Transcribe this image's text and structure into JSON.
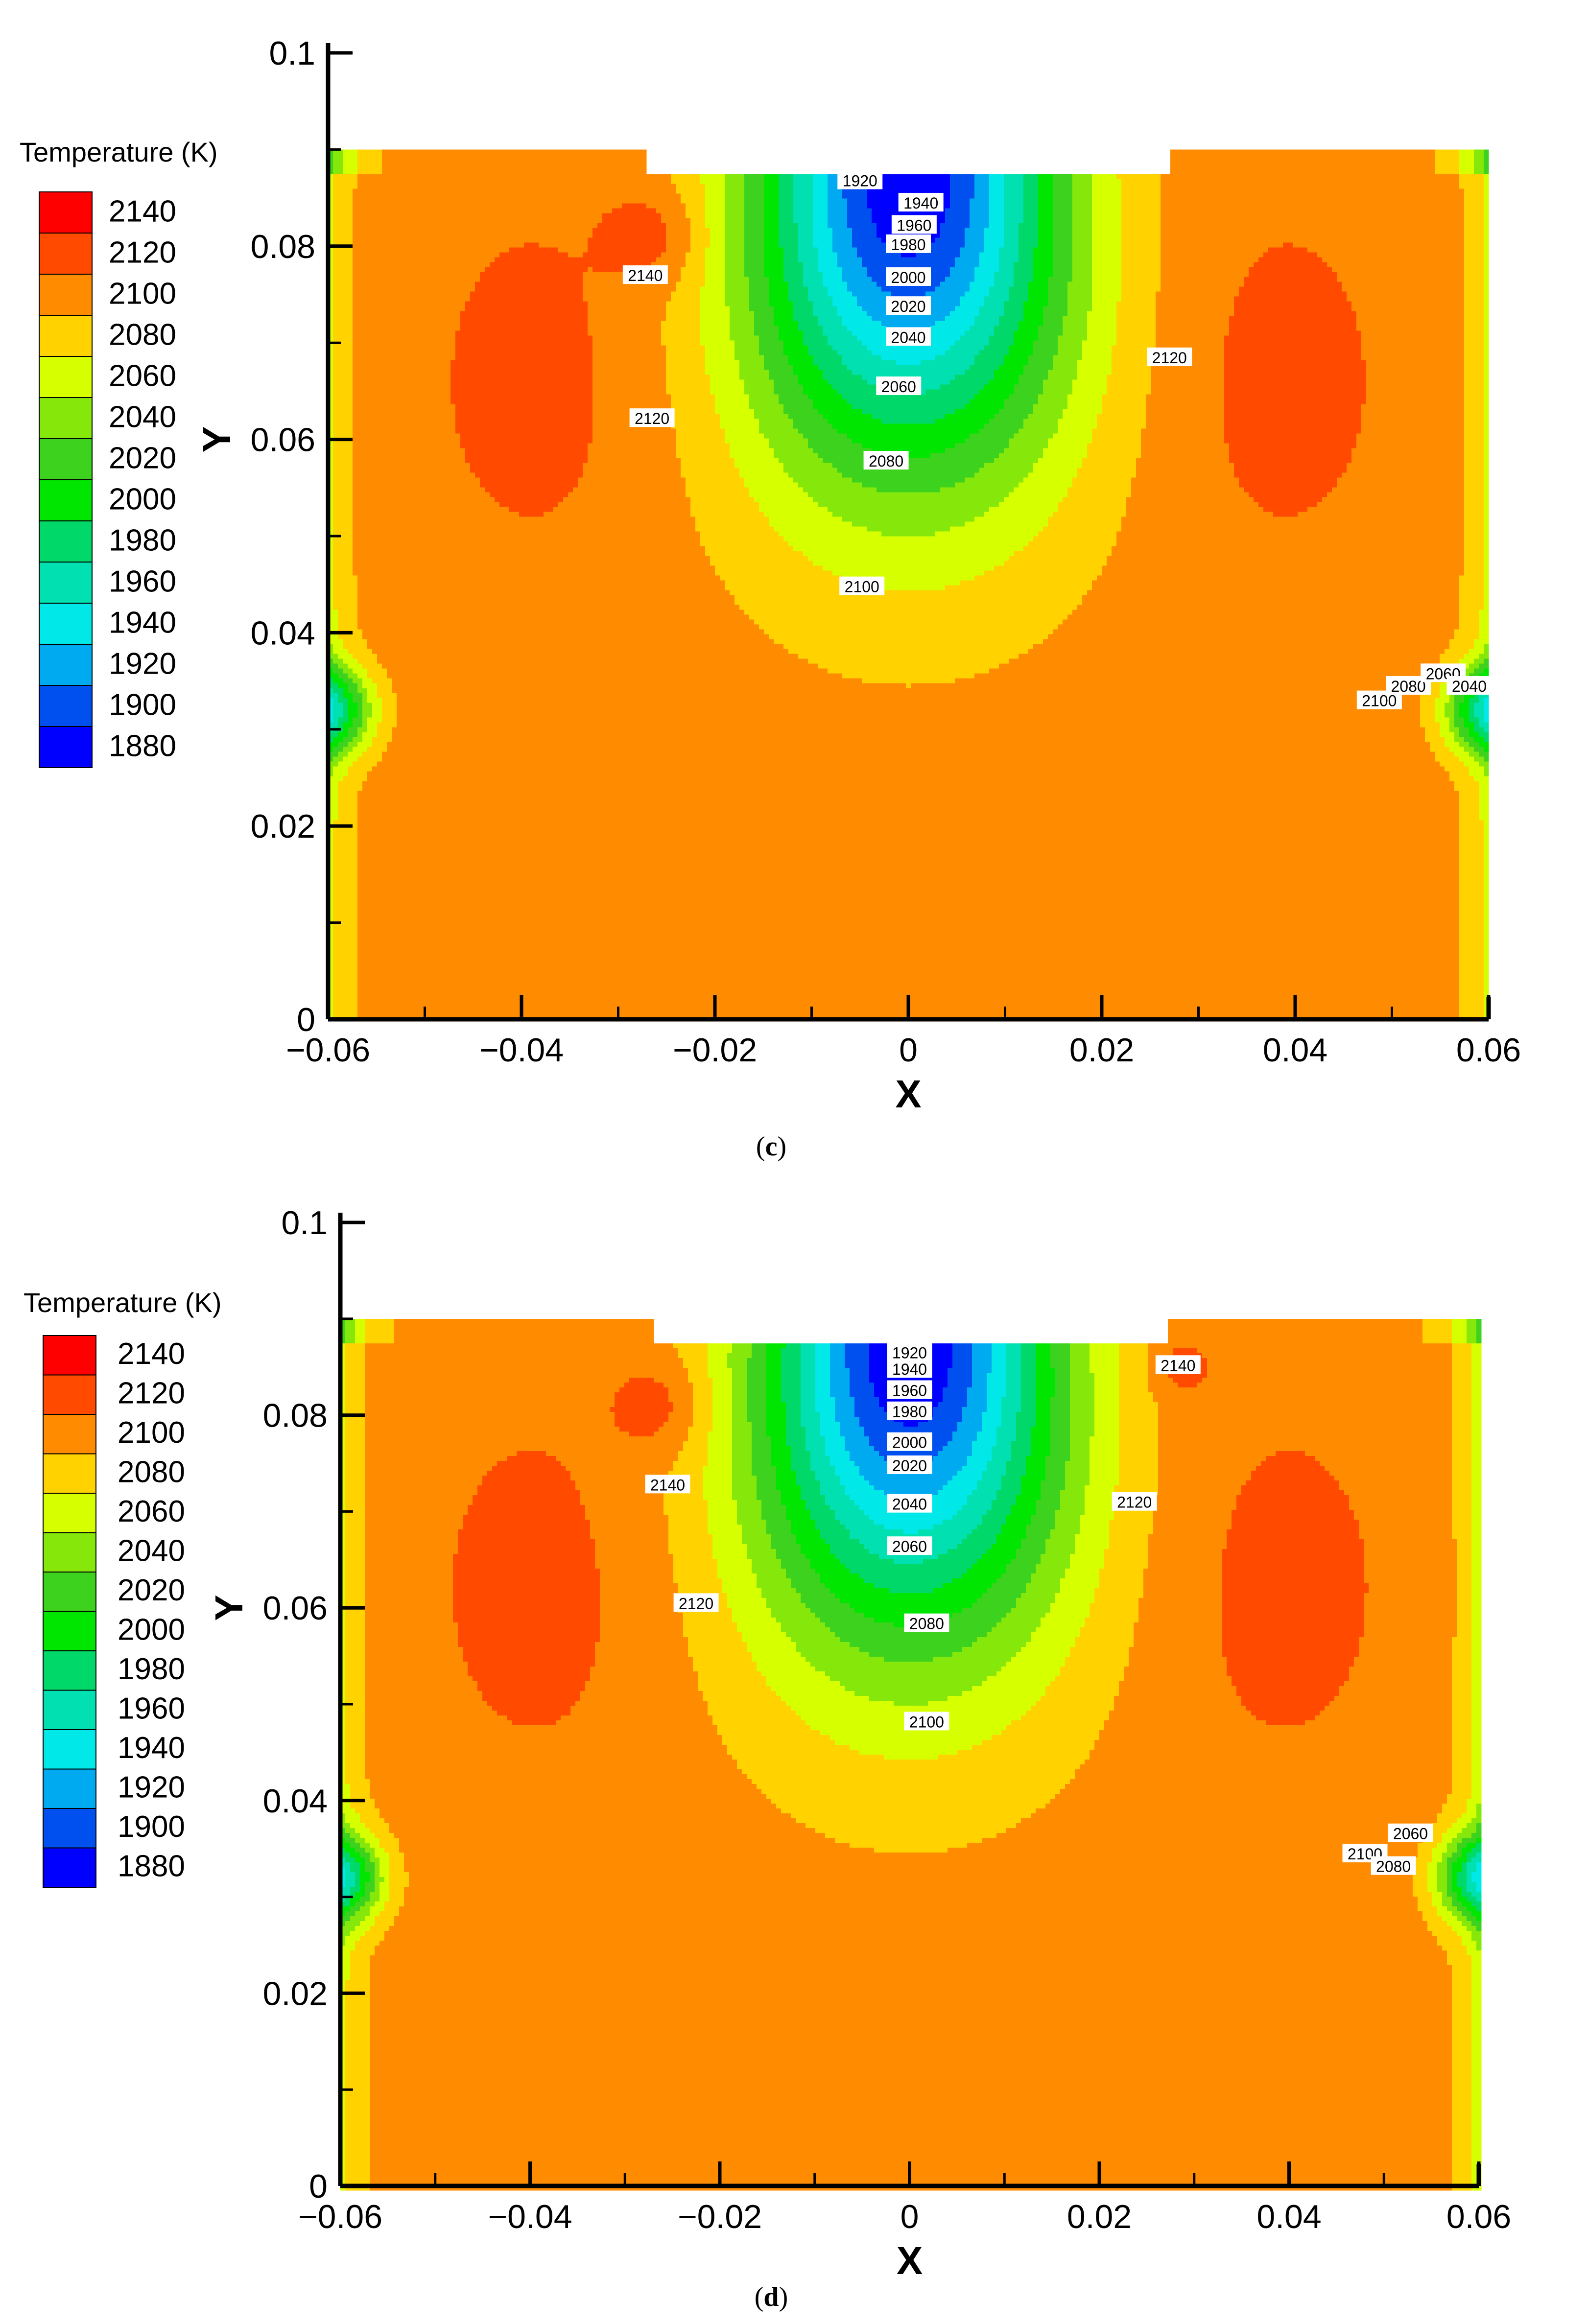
{
  "chart_data": [
    {
      "panel": "c",
      "type": "contour",
      "xlabel": "X",
      "ylabel": "Y",
      "xlim": [
        -0.06,
        0.06
      ],
      "ylim": [
        0,
        0.1
      ],
      "x_ticks": [
        "-0.06",
        "-0.04",
        "-0.02",
        "0",
        "0.02",
        "0.04",
        "0.06"
      ],
      "y_ticks": [
        "0",
        "0.02",
        "0.04",
        "0.06",
        "0.08",
        "0.1"
      ],
      "domain_top": 0.09,
      "inlet_x": [
        -0.027,
        0.027
      ],
      "inlet_y": 0.0875,
      "legend": {
        "title": "Temperature (K)",
        "placement": "left",
        "levels": [
          2140,
          2120,
          2100,
          2080,
          2060,
          2040,
          2020,
          2000,
          1980,
          1960,
          1940,
          1920,
          1900,
          1880
        ],
        "colors": [
          "#ff0000",
          "#ff4a00",
          "#ff8c00",
          "#ffd200",
          "#d6ff00",
          "#86e80a",
          "#3cd21e",
          "#00e600",
          "#00d86a",
          "#00e0b0",
          "#00e8e8",
          "#00aaf0",
          "#0050f0",
          "#0000ff"
        ]
      },
      "annotations": [
        {
          "text": "1920",
          "x": -0.005,
          "y": 0.0868
        },
        {
          "text": "1940",
          "x": 0.0013,
          "y": 0.0845
        },
        {
          "text": "1960",
          "x": 0.0006,
          "y": 0.0822
        },
        {
          "text": "1980",
          "x": 0.0,
          "y": 0.0802
        },
        {
          "text": "2000",
          "x": 0.0,
          "y": 0.0768
        },
        {
          "text": "2020",
          "x": 0.0,
          "y": 0.0738
        },
        {
          "text": "2040",
          "x": 0.0,
          "y": 0.0706
        },
        {
          "text": "2060",
          "x": -0.001,
          "y": 0.0655
        },
        {
          "text": "2080",
          "x": -0.0023,
          "y": 0.0578
        },
        {
          "text": "2100",
          "x": -0.0048,
          "y": 0.0448
        },
        {
          "text": "2140",
          "x": -0.0272,
          "y": 0.077
        },
        {
          "text": "2120",
          "x": -0.0265,
          "y": 0.0622
        },
        {
          "text": "2120",
          "x": 0.027,
          "y": 0.0685
        },
        {
          "text": "2100",
          "x": 0.0487,
          "y": 0.033
        },
        {
          "text": "2080",
          "x": 0.0517,
          "y": 0.0345
        },
        {
          "text": "2060",
          "x": 0.0553,
          "y": 0.0358
        },
        {
          "text": "2040",
          "x": 0.058,
          "y": 0.0345
        }
      ]
    },
    {
      "panel": "d",
      "type": "contour",
      "xlabel": "X",
      "ylabel": "Y",
      "xlim": [
        -0.06,
        0.06
      ],
      "ylim": [
        0,
        0.1
      ],
      "x_ticks": [
        "-0.06",
        "-0.04",
        "-0.02",
        "0",
        "0.02",
        "0.04",
        "0.06"
      ],
      "y_ticks": [
        "0",
        "0.02",
        "0.04",
        "0.06",
        "0.08",
        "0.1"
      ],
      "domain_top": 0.09,
      "inlet_x": [
        -0.027,
        0.027
      ],
      "inlet_y": 0.0875,
      "legend": {
        "title": "Temperature (K)",
        "placement": "left",
        "levels": [
          2140,
          2120,
          2100,
          2080,
          2060,
          2040,
          2020,
          2000,
          1980,
          1960,
          1940,
          1920,
          1900,
          1880
        ],
        "colors": [
          "#ff0000",
          "#ff4a00",
          "#ff8c00",
          "#ffd200",
          "#d6ff00",
          "#86e80a",
          "#3cd21e",
          "#00e600",
          "#00d86a",
          "#00e0b0",
          "#00e8e8",
          "#00aaf0",
          "#0050f0",
          "#0000ff"
        ]
      },
      "annotations": [
        {
          "text": "1920",
          "x": 0.0,
          "y": 0.0865
        },
        {
          "text": "1940",
          "x": 0.0,
          "y": 0.0848
        },
        {
          "text": "1960",
          "x": 0.0,
          "y": 0.0826
        },
        {
          "text": "1980",
          "x": 0.0,
          "y": 0.0804
        },
        {
          "text": "2000",
          "x": 0.0,
          "y": 0.0772
        },
        {
          "text": "2020",
          "x": 0.0,
          "y": 0.0748
        },
        {
          "text": "2040",
          "x": 0.0,
          "y": 0.0708
        },
        {
          "text": "2060",
          "x": 0.0,
          "y": 0.0664
        },
        {
          "text": "2080",
          "x": 0.0018,
          "y": 0.0584
        },
        {
          "text": "2100",
          "x": 0.0018,
          "y": 0.0482
        },
        {
          "text": "2140",
          "x": -0.0255,
          "y": 0.0728
        },
        {
          "text": "2120",
          "x": -0.0225,
          "y": 0.0605
        },
        {
          "text": "2140",
          "x": 0.0283,
          "y": 0.0852
        },
        {
          "text": "2120",
          "x": 0.0237,
          "y": 0.071
        },
        {
          "text": "2060",
          "x": 0.0528,
          "y": 0.0366
        },
        {
          "text": "2100",
          "x": 0.048,
          "y": 0.0345
        },
        {
          "text": "2080",
          "x": 0.051,
          "y": 0.0332
        }
      ]
    }
  ],
  "captions": [
    "c",
    "d"
  ]
}
